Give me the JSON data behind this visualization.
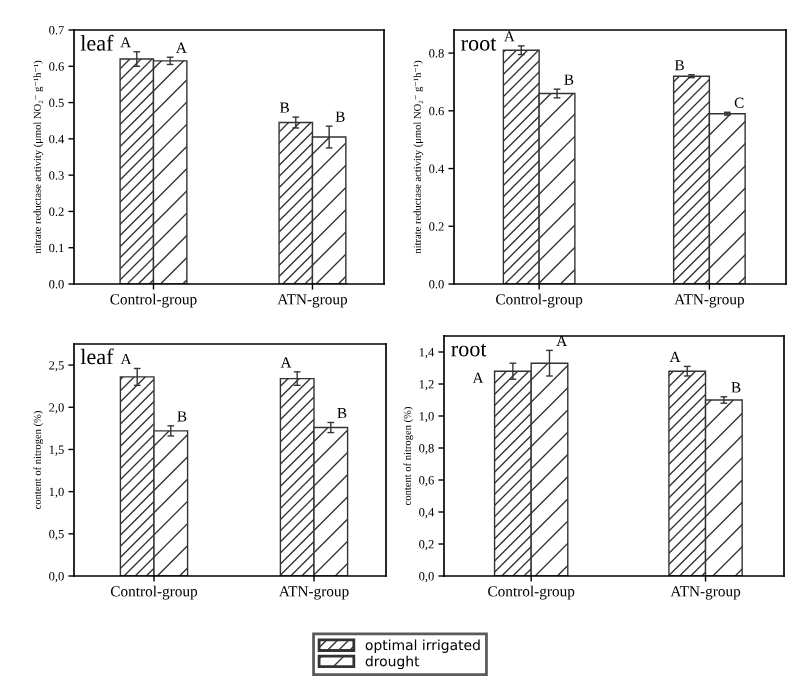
{
  "chart_data": [
    {
      "type": "bar",
      "title": "leaf",
      "ylabel": "nitrate reductase activity (μmol NO₂⁻ g⁻¹h⁻¹)",
      "categories": [
        "Control-group",
        "ATN-group"
      ],
      "series": [
        {
          "name": "optimal irrigated",
          "color": "#333333",
          "values": [
            0.62,
            0.445
          ],
          "errors": [
            0.02,
            0.015
          ]
        },
        {
          "name": "drought",
          "color": "#333333",
          "values": [
            0.615,
            0.405
          ],
          "errors": [
            0.01,
            0.03
          ]
        }
      ],
      "ylim": [
        0,
        0.7
      ],
      "yticks": [
        {
          "value": 0,
          "label": "0.0"
        },
        0.1,
        0.2,
        0.3,
        0.4,
        0.5,
        0.6,
        0.7
      ],
      "legend": "bottom",
      "annotations": [
        {
          "text": "A",
          "x": "Control-group",
          "y": 0.62
        },
        {
          "text": "A",
          "x": "Control-group",
          "y": 0.615
        },
        {
          "text": "B",
          "x": "ATN-group",
          "y": 0.445
        },
        {
          "text": "B",
          "x": "ATN-group",
          "y": 0.405
        }
      ]
    },
    {
      "type": "bar",
      "title": "root",
      "ylabel": "nitrate reductase activity (μmol NO₂⁻ g⁻¹h⁻¹)",
      "categories": [
        "Control-group",
        "ATN-group"
      ],
      "series": [
        {
          "color": "#333333",
          "values": [
            0.81,
            0.72
          ],
          "errors": [
            0.015,
            0.005
          ]
        },
        {
          "color": "#333333",
          "values": [
            0.66,
            0.59
          ],
          "errors": [
            0.015,
            0.005
          ]
        }
      ],
      "ylim": [
        0,
        0.88
      ],
      "yticks": [
        {
          "value": 0,
          "label": "0.0"
        },
        0.2,
        0.4,
        0.6,
        0.8
      ],
      "annotations": [
        {
          "text": "A",
          "x": "Control-group",
          "y": 0.81
        },
        {
          "text": "B",
          "x": "Control-group",
          "y": 0.66
        },
        {
          "text": "B",
          "x": "ATN-group",
          "y": 0.72
        },
        {
          "text": "C",
          "x": "ATN-group",
          "y": 0.59
        }
      ]
    },
    {
      "type": "bar",
      "title": "leaf",
      "ylabel": "content of nitrogen (%)",
      "categories": [
        "Control-group",
        "ATN-group"
      ],
      "series": [
        {
          "color": "#333333",
          "values": [
            2.36,
            2.34
          ],
          "errors": [
            0.1,
            0.08
          ]
        },
        {
          "color": "#333333",
          "values": [
            1.72,
            1.76
          ],
          "errors": [
            0.06,
            0.06
          ]
        }
      ],
      "ylim": [
        0,
        2.75
      ],
      "yticks": [
        {
          "value": 0.0,
          "label": "0,0"
        },
        {
          "value": 0.5,
          "label": "0,5"
        },
        {
          "value": 1.0,
          "label": "1,0"
        },
        {
          "value": 1.5,
          "label": "1,5"
        },
        {
          "value": 2.0,
          "label": "2,0"
        },
        {
          "value": 2.5,
          "label": "2,5"
        }
      ],
      "annotations": [
        {
          "text": "A",
          "x": "Control-group",
          "y": 2.36
        },
        {
          "text": "B",
          "x": "Control-group",
          "y": 1.72
        },
        {
          "text": "A",
          "x": "ATN-group",
          "y": 2.34
        },
        {
          "text": "B",
          "x": "ATN-group",
          "y": 1.76
        }
      ]
    },
    {
      "type": "bar",
      "title": "root",
      "ylabel": "content of nitrogen (%)",
      "categories": [
        "Control-group",
        "ATN-group"
      ],
      "series": [
        {
          "color": "#333333",
          "values": [
            1.28,
            1.28
          ],
          "errors": [
            0.05,
            0.03
          ]
        },
        {
          "color": "#333333",
          "values": [
            1.33,
            1.1
          ],
          "errors": [
            0.08,
            0.02
          ]
        }
      ],
      "ylim": [
        0,
        1.5
      ],
      "yticks": [
        {
          "value": 0.0,
          "label": "0,0"
        },
        {
          "value": 0.2,
          "label": "0,2"
        },
        {
          "value": 0.4,
          "label": "0,4"
        },
        {
          "value": 0.6,
          "label": "0,6"
        },
        {
          "value": 0.8,
          "label": "0,8"
        },
        {
          "value": 1.0,
          "label": "1,0"
        },
        {
          "value": 1.2,
          "label": "1,2"
        },
        {
          "value": 1.4,
          "label": "1,4"
        }
      ],
      "annotations": [
        "A",
        {
          "text": "A",
          "x": "Control-group",
          "y": 1.33
        },
        {
          "text": "A",
          "x": "ATN-group",
          "y": 1.28
        },
        {
          "text": "B",
          "x": "ATN-group",
          "y": 1.1
        }
      ]
    }
  ]
}
